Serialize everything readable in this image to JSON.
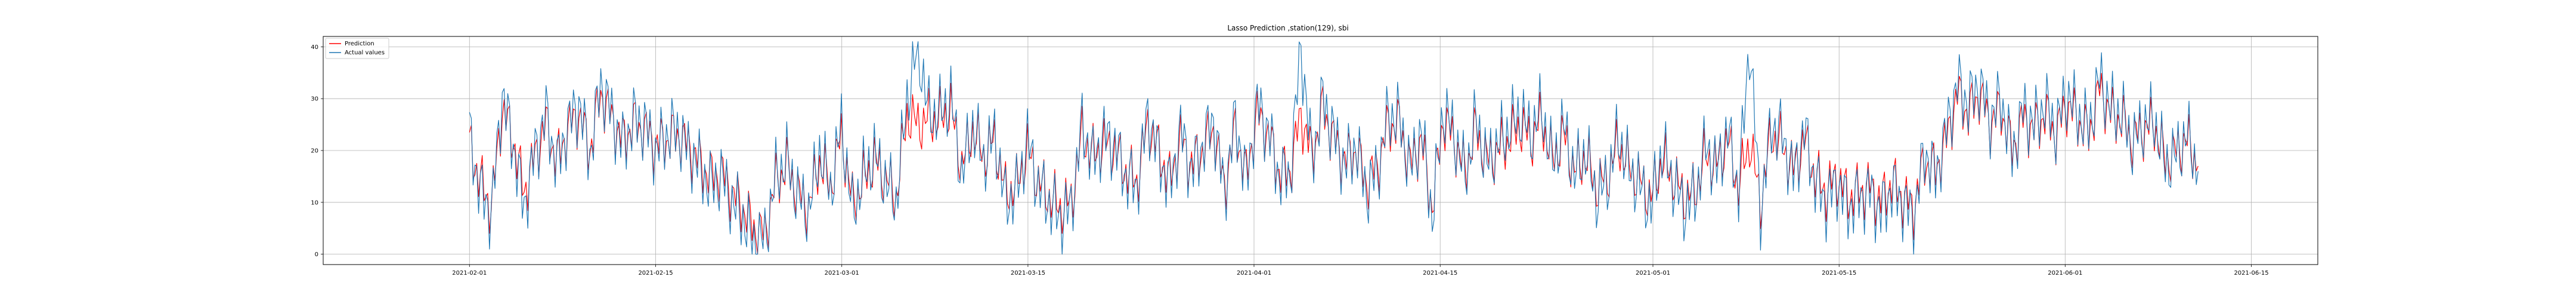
{
  "chart_data": {
    "type": "line",
    "title": "Lasso Prediction ,station(129), sbi",
    "xlabel": "",
    "ylabel": "",
    "x_range": [
      "2021-01-21",
      "2021-06-20"
    ],
    "ylim": [
      -2,
      42
    ],
    "x_ticks": [
      "2021-02-01",
      "2021-02-15",
      "2021-03-01",
      "2021-03-15",
      "2021-04-01",
      "2021-04-15",
      "2021-05-01",
      "2021-05-15",
      "2021-06-01",
      "2021-06-15"
    ],
    "y_ticks": [
      0,
      10,
      20,
      30,
      40
    ],
    "grid": true,
    "legend_position": "top-left",
    "series_x_range": [
      "2021-02-01",
      "2021-06-11"
    ],
    "series": [
      {
        "name": "Prediction",
        "color": "#ff0000",
        "values": [
          21,
          14,
          9,
          28,
          22,
          12,
          19,
          25,
          18,
          24,
          27,
          20,
          31,
          26,
          22,
          25,
          24,
          21,
          22,
          23,
          21,
          18,
          15,
          16,
          12,
          9,
          5,
          4,
          14,
          17,
          12,
          9,
          18,
          13,
          23,
          10,
          14,
          18,
          15,
          11,
          27,
          25,
          26,
          26,
          28,
          17,
          24,
          19,
          22,
          12,
          13,
          20,
          14,
          11,
          9,
          10,
          23,
          19,
          21,
          20,
          16,
          14,
          25,
          20,
          14,
          22,
          17,
          20,
          24,
          13,
          24,
          15,
          27,
          23,
          16,
          16,
          27,
          19,
          28,
          22,
          18,
          20,
          14,
          17,
          25,
          25,
          17,
          22,
          9,
          26,
          22,
          16,
          24,
          18,
          20,
          22,
          25,
          22,
          26,
          18,
          23,
          16,
          19,
          13,
          15,
          21,
          17,
          14,
          11,
          18,
          15,
          11,
          12,
          19,
          17,
          22,
          13,
          22,
          10,
          23,
          21,
          16,
          22,
          15,
          12,
          15,
          11,
          12,
          13,
          10,
          14,
          11,
          9,
          18,
          16,
          22,
          31,
          27,
          31,
          25,
          28,
          20,
          26,
          24,
          27,
          23,
          29,
          26,
          23,
          32,
          27,
          26,
          22,
          24,
          25,
          18,
          20,
          22,
          17
        ]
      },
      {
        "name": "Actual values",
        "color": "#1f77b4",
        "values": [
          23,
          12,
          8,
          31,
          21,
          9,
          20,
          27,
          17,
          25,
          29,
          19,
          33,
          27,
          21,
          26,
          25,
          20,
          23,
          24,
          20,
          17,
          13,
          15,
          10,
          7,
          2,
          3,
          15,
          18,
          11,
          8,
          20,
          12,
          25,
          8,
          15,
          19,
          14,
          10,
          30,
          40,
          27,
          27,
          30,
          15,
          25,
          18,
          23,
          10,
          12,
          22,
          13,
          10,
          7,
          9,
          25,
          18,
          23,
          21,
          15,
          13,
          27,
          19,
          13,
          24,
          16,
          21,
          26,
          12,
          26,
          14,
          29,
          24,
          15,
          15,
          40,
          18,
          30,
          23,
          17,
          21,
          12,
          16,
          27,
          26,
          16,
          24,
          7,
          28,
          23,
          15,
          26,
          17,
          21,
          24,
          27,
          23,
          28,
          17,
          25,
          15,
          20,
          11,
          14,
          23,
          16,
          13,
          9,
          20,
          14,
          9,
          11,
          21,
          16,
          24,
          12,
          41,
          8,
          25,
          23,
          15,
          24,
          14,
          10,
          14,
          9,
          11,
          12,
          8,
          13,
          10,
          7,
          20,
          15,
          24,
          33,
          29,
          33,
          26,
          30,
          19,
          28,
          25,
          29,
          24,
          31,
          27,
          24,
          34,
          28,
          27,
          21,
          25,
          26,
          17,
          19,
          23,
          16
        ]
      }
    ]
  }
}
